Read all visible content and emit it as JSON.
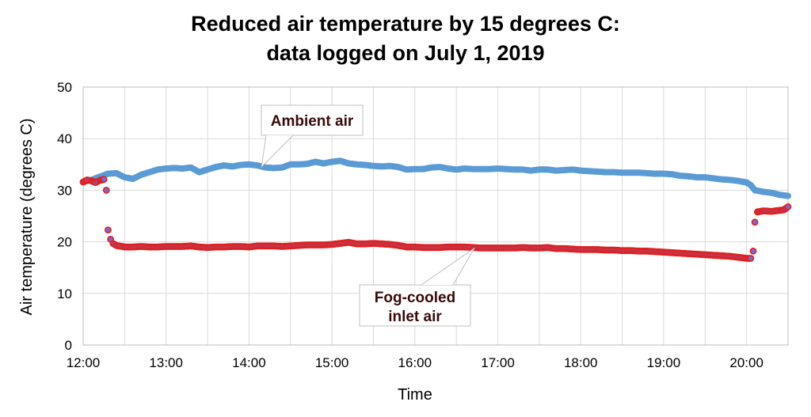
{
  "chart_data": {
    "type": "scatter",
    "title_lines": [
      "Reduced air temperature by 15 degrees C:",
      "data logged on July 1, 2019"
    ],
    "xlabel": "Time",
    "ylabel": "Air temperature (degrees C)",
    "xlim": [
      12.0,
      20.5
    ],
    "ylim": [
      0,
      50
    ],
    "x_ticks": [
      {
        "value": 12,
        "label": "12:00"
      },
      {
        "value": 13,
        "label": "13:00"
      },
      {
        "value": 14,
        "label": "14:00"
      },
      {
        "value": 15,
        "label": "15:00"
      },
      {
        "value": 16,
        "label": "16:00"
      },
      {
        "value": 17,
        "label": "17:00"
      },
      {
        "value": 18,
        "label": "18:00"
      },
      {
        "value": 19,
        "label": "19:00"
      },
      {
        "value": 20,
        "label": "20:00"
      }
    ],
    "y_ticks": [
      0,
      10,
      20,
      30,
      40,
      50
    ],
    "grid": true,
    "series": [
      {
        "callout": "Ambient air",
        "color": "#5b9bd5",
        "x": [
          12.0,
          12.1,
          12.2,
          12.3,
          12.4,
          12.5,
          12.6,
          12.7,
          12.8,
          12.9,
          13.0,
          13.1,
          13.2,
          13.3,
          13.4,
          13.5,
          13.6,
          13.7,
          13.8,
          13.9,
          14.0,
          14.1,
          14.2,
          14.3,
          14.4,
          14.5,
          14.6,
          14.7,
          14.8,
          14.9,
          15.0,
          15.1,
          15.2,
          15.3,
          15.4,
          15.5,
          15.6,
          15.7,
          15.8,
          15.9,
          16.0,
          16.1,
          16.2,
          16.3,
          16.4,
          16.5,
          16.6,
          16.7,
          16.8,
          16.9,
          17.0,
          17.1,
          17.2,
          17.3,
          17.4,
          17.5,
          17.6,
          17.7,
          17.8,
          17.9,
          18.0,
          18.1,
          18.2,
          18.3,
          18.4,
          18.5,
          18.6,
          18.7,
          18.8,
          18.9,
          19.0,
          19.1,
          19.2,
          19.3,
          19.4,
          19.5,
          19.6,
          19.7,
          19.8,
          19.9,
          20.0,
          20.05,
          20.1,
          20.2,
          20.3,
          20.4,
          20.5
        ],
        "y": [
          31.6,
          32.0,
          32.6,
          33.2,
          33.3,
          32.5,
          32.2,
          33.0,
          33.5,
          34.0,
          34.2,
          34.3,
          34.2,
          34.4,
          33.5,
          34.0,
          34.5,
          34.8,
          34.6,
          34.9,
          35.0,
          34.8,
          34.4,
          34.3,
          34.4,
          35.0,
          35.0,
          35.1,
          35.5,
          35.2,
          35.5,
          35.7,
          35.2,
          35.0,
          34.9,
          34.7,
          34.6,
          34.7,
          34.5,
          34.0,
          34.1,
          34.1,
          34.4,
          34.5,
          34.2,
          34.0,
          34.2,
          34.1,
          34.1,
          34.1,
          34.2,
          34.1,
          34.0,
          34.0,
          33.8,
          34.0,
          34.0,
          33.8,
          33.9,
          34.0,
          33.8,
          33.7,
          33.6,
          33.5,
          33.5,
          33.4,
          33.4,
          33.4,
          33.3,
          33.2,
          33.2,
          33.1,
          32.8,
          32.7,
          32.5,
          32.5,
          32.3,
          32.1,
          32.0,
          31.8,
          31.5,
          31.0,
          30.0,
          29.7,
          29.5,
          29.1,
          28.9
        ]
      },
      {
        "callout": "Fog-cooled\ninlet air",
        "color": "#e0201e",
        "marker_color": "#7a6ad0",
        "x": [
          12.0,
          12.05,
          12.1,
          12.15,
          12.2,
          12.25,
          12.28,
          12.3,
          12.33,
          12.36,
          12.4,
          12.5,
          12.6,
          12.7,
          12.8,
          12.9,
          13.0,
          13.1,
          13.2,
          13.3,
          13.4,
          13.5,
          13.6,
          13.7,
          13.8,
          13.9,
          14.0,
          14.1,
          14.2,
          14.3,
          14.4,
          14.5,
          14.6,
          14.7,
          14.8,
          14.9,
          15.0,
          15.1,
          15.2,
          15.3,
          15.4,
          15.5,
          15.6,
          15.7,
          15.8,
          15.9,
          16.0,
          16.1,
          16.2,
          16.3,
          16.4,
          16.5,
          16.6,
          16.7,
          16.8,
          16.9,
          17.0,
          17.1,
          17.2,
          17.3,
          17.4,
          17.5,
          17.6,
          17.7,
          17.8,
          17.9,
          18.0,
          18.1,
          18.2,
          18.3,
          18.4,
          18.5,
          18.6,
          18.7,
          18.8,
          18.9,
          19.0,
          19.1,
          19.2,
          19.3,
          19.4,
          19.5,
          19.6,
          19.7,
          19.8,
          19.9,
          20.0,
          20.05,
          20.08,
          20.1,
          20.13,
          20.2,
          20.3,
          20.4,
          20.45,
          20.5
        ],
        "y": [
          31.6,
          32.0,
          31.8,
          31.5,
          31.9,
          32.1,
          30.0,
          22.3,
          20.5,
          19.7,
          19.3,
          19.0,
          19.0,
          19.1,
          19.0,
          19.0,
          19.1,
          19.1,
          19.1,
          19.2,
          19.0,
          18.9,
          19.0,
          19.0,
          19.1,
          19.1,
          19.0,
          19.2,
          19.2,
          19.2,
          19.1,
          19.2,
          19.3,
          19.4,
          19.4,
          19.4,
          19.5,
          19.7,
          19.9,
          19.6,
          19.6,
          19.7,
          19.6,
          19.5,
          19.3,
          19.0,
          19.0,
          18.9,
          18.9,
          18.9,
          19.0,
          19.0,
          19.0,
          18.9,
          18.8,
          18.8,
          18.8,
          18.8,
          18.8,
          18.9,
          18.8,
          18.8,
          18.9,
          18.7,
          18.7,
          18.6,
          18.5,
          18.5,
          18.5,
          18.4,
          18.4,
          18.3,
          18.3,
          18.2,
          18.2,
          18.1,
          18.0,
          17.9,
          17.8,
          17.7,
          17.6,
          17.5,
          17.4,
          17.3,
          17.2,
          17.0,
          16.8,
          16.8,
          18.2,
          23.8,
          25.8,
          26.0,
          25.9,
          26.1,
          26.2,
          26.8
        ]
      }
    ]
  }
}
